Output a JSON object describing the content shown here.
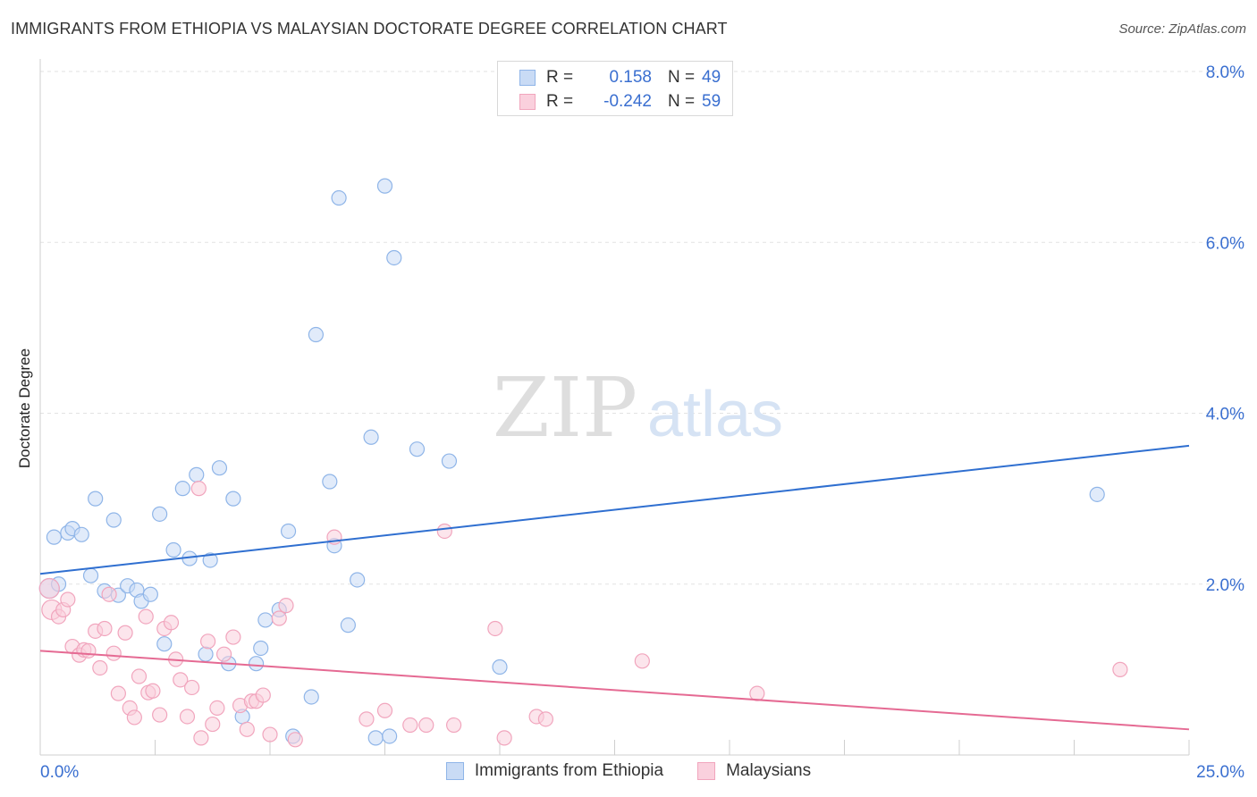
{
  "chart_data": {
    "type": "scatter",
    "title": "IMMIGRANTS FROM ETHIOPIA VS MALAYSIAN DOCTORATE DEGREE CORRELATION CHART",
    "source": "Source: ZipAtlas.com",
    "ylabel": "Doctorate Degree",
    "xlabel": "",
    "xlim": [
      0,
      25
    ],
    "ylim": [
      0,
      8
    ],
    "x_tick_labels": [
      "0.0%",
      "25.0%"
    ],
    "y_ticks": [
      2,
      4,
      6,
      8
    ],
    "y_tick_labels": [
      "2.0%",
      "4.0%",
      "6.0%",
      "8.0%"
    ],
    "watermark": "ZIPatlas",
    "legend": [
      {
        "r_label": "R =",
        "r_value": "0.158",
        "n_label": "N =",
        "n_value": "49"
      },
      {
        "r_label": "R =",
        "r_value": "-0.242",
        "n_label": "N =",
        "n_value": "59"
      }
    ],
    "series": [
      {
        "name": "Immigrants from Ethiopia",
        "color": "#8fb5e8",
        "fill": "#c9dbf5",
        "line_color": "#2f6fd0",
        "trend": {
          "x": [
            0,
            25
          ],
          "y": [
            2.12,
            3.62
          ]
        },
        "points": [
          [
            0.2,
            1.95
          ],
          [
            0.3,
            2.55
          ],
          [
            0.4,
            2.0
          ],
          [
            0.6,
            2.6
          ],
          [
            0.7,
            2.65
          ],
          [
            0.9,
            2.58
          ],
          [
            1.1,
            2.1
          ],
          [
            1.2,
            3.0
          ],
          [
            1.4,
            1.92
          ],
          [
            1.6,
            2.75
          ],
          [
            1.7,
            1.87
          ],
          [
            1.9,
            1.98
          ],
          [
            2.1,
            1.93
          ],
          [
            2.2,
            1.8
          ],
          [
            2.4,
            1.88
          ],
          [
            2.6,
            2.82
          ],
          [
            2.7,
            1.3
          ],
          [
            2.9,
            2.4
          ],
          [
            3.1,
            3.12
          ],
          [
            3.25,
            2.3
          ],
          [
            3.4,
            3.28
          ],
          [
            3.6,
            1.18
          ],
          [
            3.7,
            2.28
          ],
          [
            3.9,
            3.36
          ],
          [
            4.1,
            1.07
          ],
          [
            4.2,
            3.0
          ],
          [
            4.4,
            0.45
          ],
          [
            4.7,
            1.07
          ],
          [
            4.8,
            1.25
          ],
          [
            4.9,
            1.58
          ],
          [
            5.2,
            1.7
          ],
          [
            5.4,
            2.62
          ],
          [
            5.5,
            0.22
          ],
          [
            5.9,
            0.68
          ],
          [
            6.0,
            4.92
          ],
          [
            6.3,
            3.2
          ],
          [
            6.4,
            2.45
          ],
          [
            6.5,
            6.52
          ],
          [
            6.7,
            1.52
          ],
          [
            6.9,
            2.05
          ],
          [
            7.2,
            3.72
          ],
          [
            7.3,
            0.2
          ],
          [
            7.5,
            6.66
          ],
          [
            7.6,
            0.22
          ],
          [
            7.7,
            5.82
          ],
          [
            8.2,
            3.58
          ],
          [
            8.9,
            3.44
          ],
          [
            10.0,
            1.03
          ],
          [
            23.0,
            3.05
          ]
        ]
      },
      {
        "name": "Malaysians",
        "color": "#f1a5bd",
        "fill": "#fad0dd",
        "line_color": "#e56a93",
        "trend": {
          "x": [
            0,
            25
          ],
          "y": [
            1.22,
            0.3
          ]
        },
        "points": [
          [
            0.2,
            1.95
          ],
          [
            0.25,
            1.7
          ],
          [
            0.4,
            1.62
          ],
          [
            0.5,
            1.7
          ],
          [
            0.6,
            1.82
          ],
          [
            0.7,
            1.27
          ],
          [
            0.85,
            1.17
          ],
          [
            0.95,
            1.23
          ],
          [
            1.05,
            1.22
          ],
          [
            1.2,
            1.45
          ],
          [
            1.3,
            1.02
          ],
          [
            1.4,
            1.48
          ],
          [
            1.5,
            1.88
          ],
          [
            1.6,
            1.19
          ],
          [
            1.7,
            0.72
          ],
          [
            1.85,
            1.43
          ],
          [
            1.95,
            0.55
          ],
          [
            2.05,
            0.44
          ],
          [
            2.15,
            0.92
          ],
          [
            2.3,
            1.62
          ],
          [
            2.35,
            0.73
          ],
          [
            2.45,
            0.75
          ],
          [
            2.6,
            0.47
          ],
          [
            2.7,
            1.48
          ],
          [
            2.85,
            1.55
          ],
          [
            2.95,
            1.12
          ],
          [
            3.05,
            0.88
          ],
          [
            3.2,
            0.45
          ],
          [
            3.3,
            0.79
          ],
          [
            3.45,
            3.12
          ],
          [
            3.5,
            0.2
          ],
          [
            3.65,
            1.33
          ],
          [
            3.75,
            0.36
          ],
          [
            3.85,
            0.55
          ],
          [
            4.0,
            1.18
          ],
          [
            4.2,
            1.38
          ],
          [
            4.35,
            0.58
          ],
          [
            4.5,
            0.3
          ],
          [
            4.6,
            0.63
          ],
          [
            4.7,
            0.63
          ],
          [
            4.85,
            0.7
          ],
          [
            5.0,
            0.24
          ],
          [
            5.2,
            1.6
          ],
          [
            5.35,
            1.75
          ],
          [
            5.55,
            0.18
          ],
          [
            6.4,
            2.55
          ],
          [
            7.1,
            0.42
          ],
          [
            7.5,
            0.52
          ],
          [
            8.05,
            0.35
          ],
          [
            8.4,
            0.35
          ],
          [
            8.8,
            2.62
          ],
          [
            9.0,
            0.35
          ],
          [
            9.9,
            1.48
          ],
          [
            10.1,
            0.2
          ],
          [
            10.8,
            0.45
          ],
          [
            11.0,
            0.42
          ],
          [
            13.1,
            1.1
          ],
          [
            15.6,
            0.72
          ],
          [
            23.5,
            1.0
          ]
        ]
      }
    ]
  }
}
